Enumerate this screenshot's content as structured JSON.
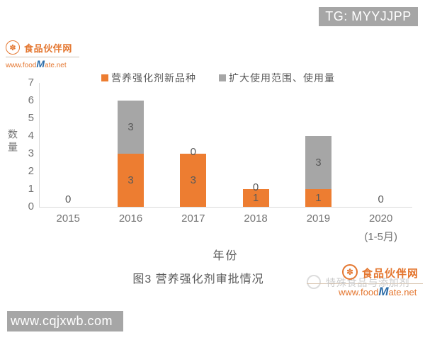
{
  "watermarks": {
    "tg_badge": "TG: MYYJJPP",
    "site_badge": "www.cqjxwb.com",
    "corner_watermark": "特殊食品与添加剂"
  },
  "branding": {
    "site_name": "食品伙伴网",
    "url_prefix": "www.food",
    "url_m": "M",
    "url_suffix": "ate.net"
  },
  "icons": {
    "foodmate_flower": "✽"
  },
  "chart_data": {
    "type": "bar",
    "stacked": true,
    "title": "图3 营养强化剂审批情况",
    "xlabel": "年份",
    "ylabel": "数量",
    "categories": [
      "2015",
      "2016",
      "2017",
      "2018",
      "2019",
      "2020"
    ],
    "category_sublabels": [
      "",
      "",
      "",
      "",
      "",
      "(1-5月)"
    ],
    "series": [
      {
        "name": "营养强化剂新品种",
        "color": "#ED7D31",
        "values": [
          0,
          3,
          3,
          1,
          1,
          0
        ]
      },
      {
        "name": "扩大使用范围、使用量",
        "color": "#A6A6A6",
        "values": [
          0,
          3,
          0,
          0,
          3,
          0
        ]
      }
    ],
    "totals": [
      0,
      6,
      3,
      1,
      4,
      0
    ],
    "ylim": [
      0,
      7
    ],
    "ytick_step": 1,
    "grid": false,
    "data_labels": true,
    "legend_position": "top"
  },
  "colors": {
    "series_orange": "#ED7D31",
    "series_gray": "#A6A6A6",
    "axis_line": "#D9D9D9",
    "tick_text": "#737373",
    "label_text": "#595959",
    "badge_bg": "#A6A6A6",
    "badge_text": "#FFFFFF",
    "brand_orange": "#E4762F",
    "brand_blue": "#2B6CA8",
    "watermark_gray": "#CBCBCB"
  }
}
